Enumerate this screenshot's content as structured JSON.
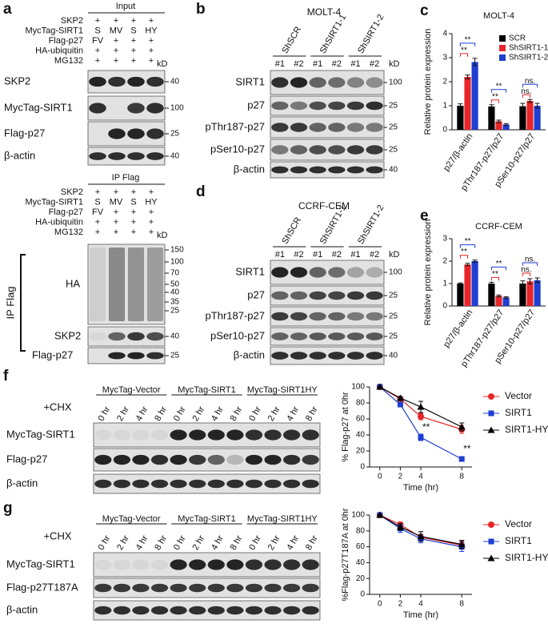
{
  "panel_a": {
    "letter": "a",
    "input": {
      "title": "Input",
      "conditions": [
        {
          "label": "SKP2",
          "cells": [
            "+",
            "+",
            "+",
            "+"
          ]
        },
        {
          "label": "MycTag-SIRT1",
          "cells": [
            "S",
            "MV",
            "S",
            "HY"
          ]
        },
        {
          "label": "Flag-p27",
          "cells": [
            "FV",
            "+",
            "+",
            "+"
          ]
        },
        {
          "label": "HA-ubiquitin",
          "cells": [
            "+",
            "+",
            "+",
            "+"
          ]
        },
        {
          "label": "MG132",
          "cells": [
            "+",
            "+",
            "+",
            "+"
          ]
        }
      ],
      "unit": "kD",
      "blots": [
        {
          "label": "SKP2",
          "markers": [
            "40"
          ]
        },
        {
          "label": "MycTag-SIRT1",
          "markers": [
            "100"
          ]
        },
        {
          "label": "Flag-p27",
          "markers": [
            "25"
          ]
        },
        {
          "label": "β-actin",
          "markers": [
            "40"
          ]
        }
      ]
    },
    "ip": {
      "title": "IP Flag",
      "conditions": [
        {
          "label": "SKP2",
          "cells": [
            "+",
            "+",
            "+",
            "+"
          ]
        },
        {
          "label": "MycTag-SIRT1",
          "cells": [
            "S",
            "MV",
            "S",
            "HY"
          ]
        },
        {
          "label": "Flag-p27",
          "cells": [
            "FV",
            "+",
            "+",
            "+"
          ]
        },
        {
          "label": "HA-ubiquitin",
          "cells": [
            "+",
            "+",
            "+",
            "+"
          ]
        },
        {
          "label": "MG132",
          "cells": [
            "+",
            "+",
            "+",
            "+"
          ]
        }
      ],
      "unit": "kD",
      "blots": [
        {
          "label": "HA",
          "markers": [
            "150",
            "100",
            "70",
            "50",
            "40",
            "35",
            "25"
          ]
        },
        {
          "label": "SKP2",
          "markers": [
            "40"
          ]
        },
        {
          "label": "Flag-p27",
          "markers": [
            "25"
          ]
        }
      ]
    },
    "side_label": "IP Flag"
  },
  "panel_b": {
    "letter": "b",
    "title": "MOLT-4",
    "groups": [
      "ShSCR",
      "ShSIRT1-1",
      "ShSIRT1-2"
    ],
    "lanes": [
      "#1",
      "#2",
      "#1",
      "#2",
      "#1",
      "#2"
    ],
    "unit": "kD",
    "blots": [
      {
        "label": "SIRT1",
        "marker": "100"
      },
      {
        "label": "p27",
        "marker": "25"
      },
      {
        "label": "pThr187-p27",
        "marker": "25"
      },
      {
        "label": "pSer10-p27",
        "marker": "25"
      },
      {
        "label": "β-actin",
        "marker": "40"
      }
    ]
  },
  "panel_d": {
    "letter": "d",
    "title": "CCRF-CEM",
    "groups": [
      "ShSCR",
      "ShSIRT1-1",
      "ShSIRT1-2"
    ],
    "lanes": [
      "#1",
      "#2",
      "#1",
      "#2",
      "#1",
      "#2"
    ],
    "unit": "kD",
    "blots": [
      {
        "label": "SIRT1",
        "marker": "100"
      },
      {
        "label": "p27",
        "marker": "25"
      },
      {
        "label": "pThr187-p27",
        "marker": "25"
      },
      {
        "label": "pSer10-p27",
        "marker": "25"
      },
      {
        "label": "β-actin",
        "marker": "40"
      }
    ]
  },
  "panel_f": {
    "letter": "f",
    "treatment": "+CHX",
    "groups": [
      "MycTag-Vector",
      "MycTag-SIRT1",
      "MycTag-SIRT1HY"
    ],
    "lanes": [
      "0 hr",
      "2 hr",
      "4 hr",
      "8 hr",
      "0 hr",
      "2 hr",
      "4 hr",
      "8 hr",
      "0 hr",
      "2 hr",
      "4 hr",
      "8 hr"
    ],
    "blots": [
      {
        "label": "MycTag-SIRT1"
      },
      {
        "label": "Flag-p27"
      },
      {
        "label": "β-actin"
      }
    ]
  },
  "panel_g": {
    "letter": "g",
    "treatment": "+CHX",
    "groups": [
      "MycTag-Vector",
      "MycTag-SIRT1",
      "MycTag-SIRT1HY"
    ],
    "lanes": [
      "0 hr",
      "2 hr",
      "4 hr",
      "8 hr",
      "0 hr",
      "2 hr",
      "4 hr",
      "8 hr",
      "0 hr",
      "2 hr",
      "4 hr",
      "8 hr"
    ],
    "blots": [
      {
        "label": "MycTag-SIRT1"
      },
      {
        "label": "Flag-p27T187A"
      },
      {
        "label": "β-actin"
      }
    ]
  },
  "chart_data": [
    {
      "letter": "c",
      "type": "bar",
      "title": "MOLT-4",
      "y_label": "Relative protein expression",
      "categories": [
        "p27/β-actin",
        "pThr187-p27/p27",
        "pSer10-p27/p27"
      ],
      "series": [
        {
          "name": "SCR",
          "color": "#000000",
          "values": [
            1,
            0.97,
            0.98
          ],
          "errors": [
            0.08,
            0.07,
            0.12
          ]
        },
        {
          "name": "ShSIRT1-1",
          "color": "#e8262a",
          "values": [
            2.2,
            0.35,
            1.2
          ],
          "errors": [
            0.08,
            0.05,
            0.06
          ]
        },
        {
          "name": "ShSIRT1-2",
          "color": "#1f3fd1",
          "values": [
            2.82,
            0.22,
            1.0
          ],
          "errors": [
            0.15,
            0.04,
            0.1
          ]
        }
      ],
      "ylim": [
        0,
        4
      ],
      "yticks": [
        0,
        1,
        2,
        3,
        4
      ],
      "significance": [
        [
          "**",
          "**"
        ],
        [
          "**",
          "**"
        ],
        [
          "ns.",
          "ns."
        ]
      ],
      "legend": "upper right"
    },
    {
      "letter": "e",
      "type": "bar",
      "title": "CCRF-CEM",
      "y_label": "Relative protein expression",
      "categories": [
        "p27/β-actin",
        "pThr187-p27/p27",
        "pSer10-p27/p27"
      ],
      "series": [
        {
          "name": "SCR",
          "color": "#000000",
          "values": [
            1,
            1,
            1
          ],
          "errors": [
            0.03,
            0.06,
            0.12
          ]
        },
        {
          "name": "ShSIRT1-1",
          "color": "#e8262a",
          "values": [
            1.85,
            0.45,
            1.1
          ],
          "errors": [
            0.05,
            0.04,
            0.12
          ]
        },
        {
          "name": "ShSIRT1-2",
          "color": "#1f3fd1",
          "values": [
            2.0,
            0.38,
            1.15
          ],
          "errors": [
            0.05,
            0.03,
            0.1
          ]
        }
      ],
      "ylim": [
        0,
        3
      ],
      "yticks": [
        0,
        1,
        2,
        3
      ],
      "significance": [
        [
          "**",
          "**"
        ],
        [
          "**",
          "**"
        ],
        [
          "ns.",
          "ns."
        ]
      ]
    },
    {
      "type": "line",
      "x_label": "Time (hr)",
      "y_label": "% Flag-p27 at 0hr",
      "x": [
        0,
        2,
        4,
        8
      ],
      "xlim": [
        -1,
        9
      ],
      "xticks": [
        0,
        2,
        4,
        8
      ],
      "ylim": [
        0,
        100
      ],
      "yticks": [
        0,
        20,
        40,
        60,
        80,
        100
      ],
      "series": [
        {
          "name": "Vector",
          "color": "#e8262a",
          "marker": "circle",
          "values": [
            100,
            85,
            63,
            47
          ],
          "errors": [
            0,
            2,
            4,
            5
          ]
        },
        {
          "name": "SIRT1",
          "color": "#1f3fd1",
          "marker": "square",
          "values": [
            100,
            78,
            37,
            10
          ],
          "errors": [
            0,
            3,
            4,
            1
          ],
          "annotations": [
            null,
            null,
            "**",
            "**"
          ]
        },
        {
          "name": "SIRT1-HY",
          "color": "#000000",
          "marker": "triangle",
          "values": [
            100,
            86,
            75,
            50
          ],
          "errors": [
            0,
            2,
            7,
            5
          ]
        }
      ],
      "legend": "right"
    },
    {
      "type": "line",
      "x_label": "Time (hr)",
      "y_label": "%Flag-p27T187A at 0hr",
      "x": [
        0,
        2,
        4,
        8
      ],
      "xlim": [
        -1,
        9
      ],
      "xticks": [
        0,
        2,
        4,
        8
      ],
      "ylim": [
        0,
        100
      ],
      "yticks": [
        0,
        20,
        40,
        60,
        80,
        100
      ],
      "series": [
        {
          "name": "Vector",
          "color": "#e8262a",
          "marker": "circle",
          "values": [
            100,
            88,
            72,
            62
          ],
          "errors": [
            0,
            3,
            4,
            5
          ]
        },
        {
          "name": "SIRT1",
          "color": "#1f3fd1",
          "marker": "square",
          "values": [
            100,
            83,
            70,
            60
          ],
          "errors": [
            0,
            5,
            5,
            6
          ]
        },
        {
          "name": "SIRT1-HY",
          "color": "#000000",
          "marker": "triangle",
          "values": [
            100,
            85,
            73,
            63
          ],
          "errors": [
            0,
            4,
            6,
            5
          ]
        }
      ],
      "legend": "right"
    }
  ]
}
